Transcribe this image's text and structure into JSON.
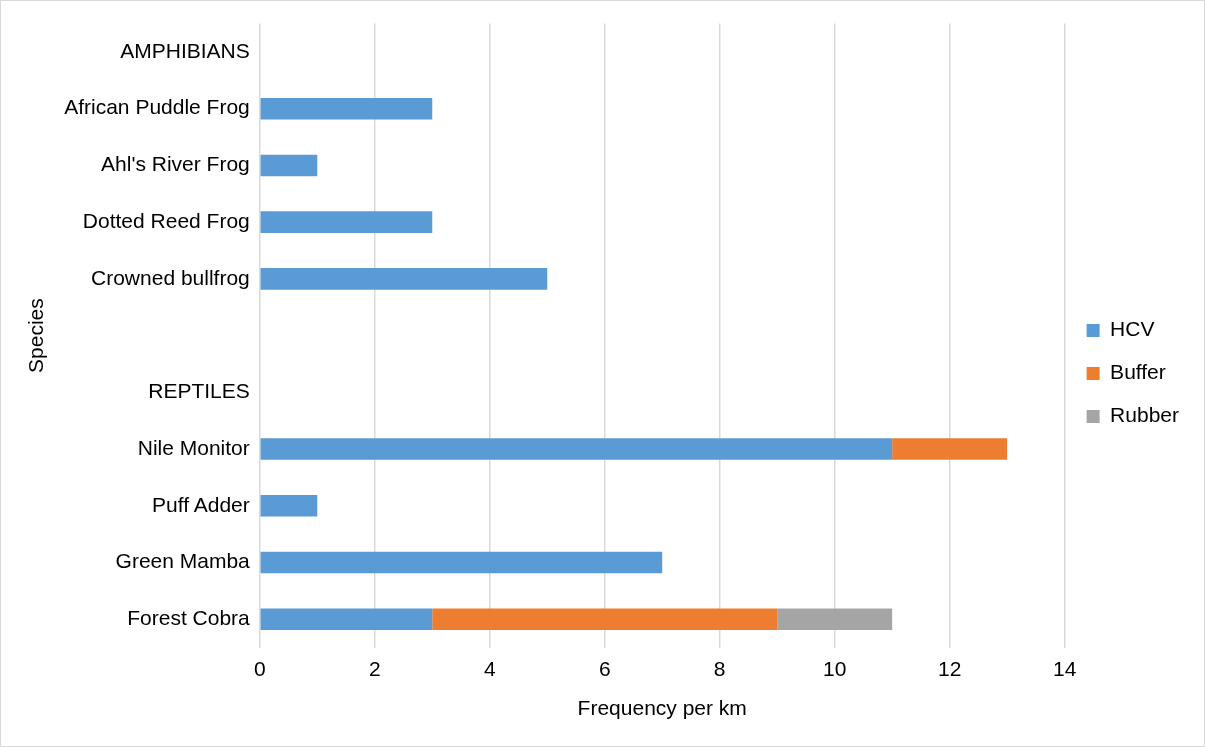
{
  "chart_data": {
    "type": "bar",
    "orientation": "horizontal",
    "stacked": true,
    "xlabel": "Frequency per km",
    "ylabel": "Species",
    "categories": [
      "AMPHIBIANS",
      "African Puddle Frog",
      "Ahl's River Frog",
      "Dotted Reed Frog",
      "Crowned bullfrog",
      null,
      "REPTILES",
      "Nile Monitor",
      "Puff Adder",
      "Green Mamba",
      "Forest Cobra"
    ],
    "series": [
      {
        "name": "HCV",
        "color": "#5b9bd5",
        "values": [
          null,
          3,
          1,
          3,
          5,
          null,
          null,
          11,
          1,
          7,
          3
        ]
      },
      {
        "name": "Buffer",
        "color": "#ed7d31",
        "values": [
          null,
          null,
          null,
          null,
          null,
          null,
          null,
          2,
          null,
          null,
          6
        ]
      },
      {
        "name": "Rubber",
        "color": "#a5a5a5",
        "values": [
          null,
          null,
          null,
          null,
          null,
          null,
          null,
          null,
          null,
          null,
          2
        ]
      }
    ],
    "xlim": [
      0,
      14
    ],
    "xticks": [
      0,
      2,
      4,
      6,
      8,
      10,
      12,
      14
    ],
    "grid": "x",
    "legend": "right"
  }
}
